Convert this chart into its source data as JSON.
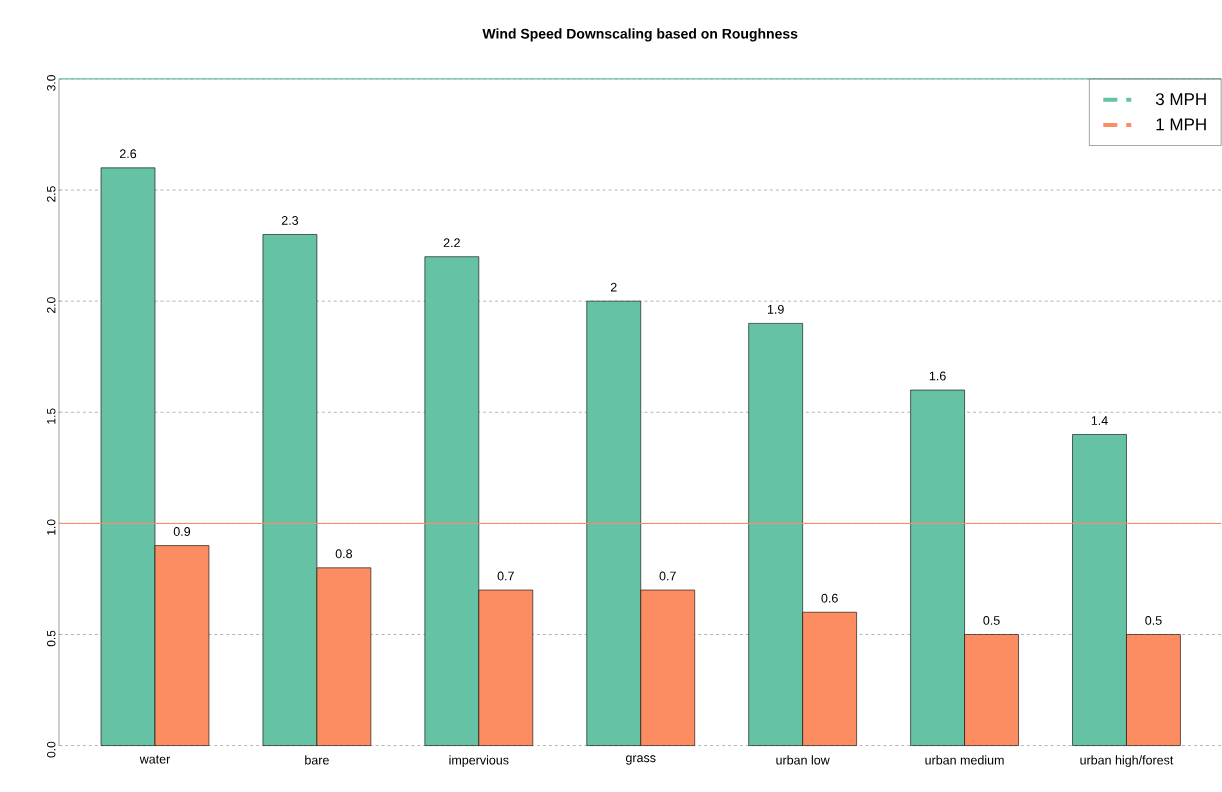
{
  "chart_data": {
    "type": "bar",
    "title": "Wind Speed Downscaling based on Roughness",
    "categories": [
      "water",
      "bare",
      "impervious",
      "grass",
      "urban low",
      "urban medium",
      "urban high/forest"
    ],
    "series": [
      {
        "color": "#66c2a5",
        "values": [
          2.6,
          2.3,
          2.2,
          2,
          1.9,
          1.6,
          1.4
        ]
      },
      {
        "color": "#fc8d62",
        "values": [
          0.9,
          0.8,
          0.7,
          0.7,
          0.6,
          0.5,
          0.5
        ]
      }
    ],
    "ylim": [
      0,
      3
    ],
    "yticks": [
      {
        "value": 0,
        "label": "0.0"
      },
      0.5,
      {
        "value": 1,
        "label": "1.0"
      },
      1.5,
      {
        "value": 2,
        "label": "2.0"
      },
      2.5,
      {
        "value": 3,
        "label": "3.0"
      }
    ],
    "ref_lines": [
      {
        "axis": "y",
        "value": 3,
        "label": "3 MPH",
        "color": "#66c2a5"
      },
      {
        "axis": "y",
        "value": 1,
        "label": "1 MPH",
        "color": "#fc8d62"
      }
    ],
    "data_labels": true,
    "grid": "y",
    "legend": "top right"
  }
}
